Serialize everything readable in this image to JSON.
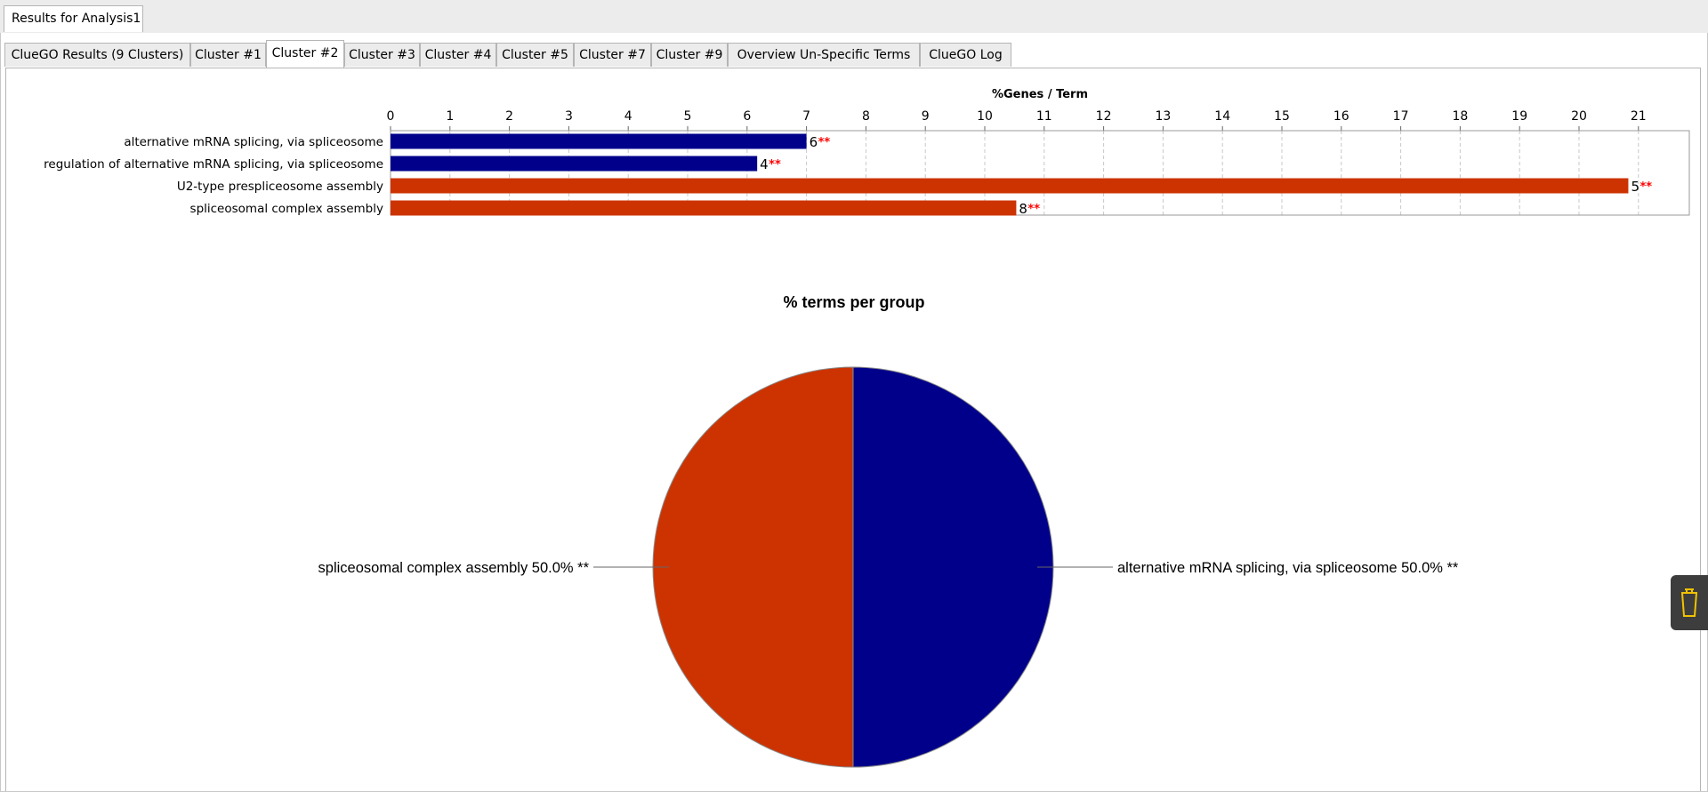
{
  "window": {
    "outer_tab": "Results for Analysis1"
  },
  "tabs": [
    {
      "label": "ClueGO Results (9 Clusters)",
      "active": false
    },
    {
      "label": "Cluster #1",
      "active": false
    },
    {
      "label": "Cluster #2",
      "active": true
    },
    {
      "label": "Cluster #3",
      "active": false
    },
    {
      "label": "Cluster #4",
      "active": false
    },
    {
      "label": "Cluster #5",
      "active": false
    },
    {
      "label": "Cluster #7",
      "active": false
    },
    {
      "label": "Cluster #9",
      "active": false
    },
    {
      "label": "Overview Un-Specific Terms",
      "active": false
    },
    {
      "label": "ClueGO Log",
      "active": false
    }
  ],
  "side_handle_icon": "cup-icon",
  "chart_data": [
    {
      "type": "bar",
      "orientation": "horizontal",
      "title": "%Genes / Term",
      "xlim": [
        0,
        21.9
      ],
      "x_ticks": [
        0,
        1,
        2,
        3,
        4,
        5,
        6,
        7,
        8,
        9,
        10,
        11,
        12,
        13,
        14,
        15,
        16,
        17,
        18,
        19,
        20,
        21
      ],
      "grid": true,
      "categories": [
        "alternative mRNA splicing, via spliceosome",
        "regulation of alternative mRNA splicing, via spliceosome",
        "U2-type prespliceosome assembly",
        "spliceosomal complex assembly"
      ],
      "values": [
        7.0,
        6.17,
        20.83,
        10.53
      ],
      "gene_counts": [
        "6",
        "4",
        "5",
        "8"
      ],
      "significance": [
        "**",
        "**",
        "**",
        "**"
      ],
      "colors": [
        "#00008b",
        "#00008b",
        "#cc3300",
        "#cc3300"
      ]
    },
    {
      "type": "pie",
      "title": "% terms per group",
      "slices": [
        {
          "label": "alternative mRNA splicing, via spliceosome 50.0% **",
          "value": 50.0,
          "color": "#00008b"
        },
        {
          "label": "spliceosomal complex assembly 50.0% **",
          "value": 50.0,
          "color": "#cc3300"
        }
      ]
    }
  ]
}
